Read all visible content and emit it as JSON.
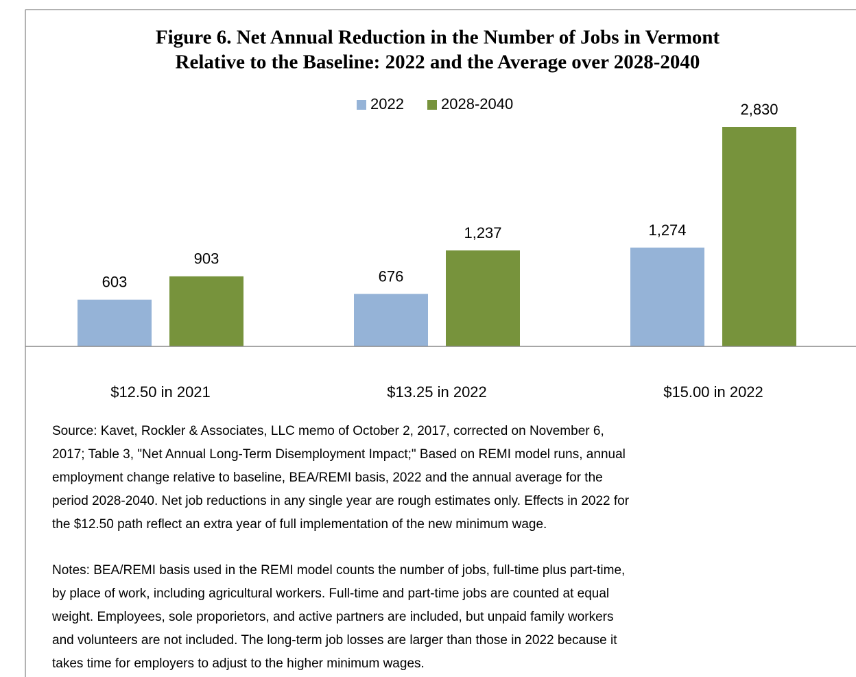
{
  "chart_data": {
    "type": "bar",
    "title": [
      "Figure 6.  Net Annual  Reduction in the Number of Jobs in Vermont",
      "Relative to the Baseline: 2022 and the Average over 2028-2040"
    ],
    "categories": [
      "$12.50 in 2021",
      "$13.25 in 2022",
      "$15.00 in 2022"
    ],
    "series": [
      {
        "name": "2022",
        "color": "#95b3d7",
        "values": [
          603,
          676,
          1274
        ],
        "value_labels": [
          "603",
          "676",
          "1,274"
        ]
      },
      {
        "name": "2028-2040",
        "color": "#77933c",
        "values": [
          903,
          1237,
          2830
        ],
        "value_labels": [
          "903",
          "1,237",
          "2,830"
        ]
      }
    ],
    "legend": "top"
  },
  "source": [
    "Source: Kavet, Rockler & Associates, LLC memo of October 2, 2017, corrected on November 6,",
    "2017; Table 3, \"Net Annual Long-Term Disemployment  Impact;\"  Based on REMI model runs, annual",
    "employment change relative to baseline, BEA/REMI basis, 2022 and the annual average for the",
    "period 2028-2040. Net job reductions in any single year are rough estimates only. Effects in 2022 for",
    "the $12.50 path reflect an extra year of full implementation of the new minimum wage."
  ],
  "notes": [
    "Notes: BEA/REMI basis used in the REMI model counts the number of jobs, full-time plus part-time,",
    "by place of work, including agricultural workers. Full-time and part-time jobs are counted at equal",
    "weight. Employees, sole proporietors, and active partners are included, but unpaid family workers",
    "and volunteers are not included.  The long-term job losses are larger than those in 2022 because it",
    "takes time for employers to adjust to the higher minimum wages."
  ]
}
